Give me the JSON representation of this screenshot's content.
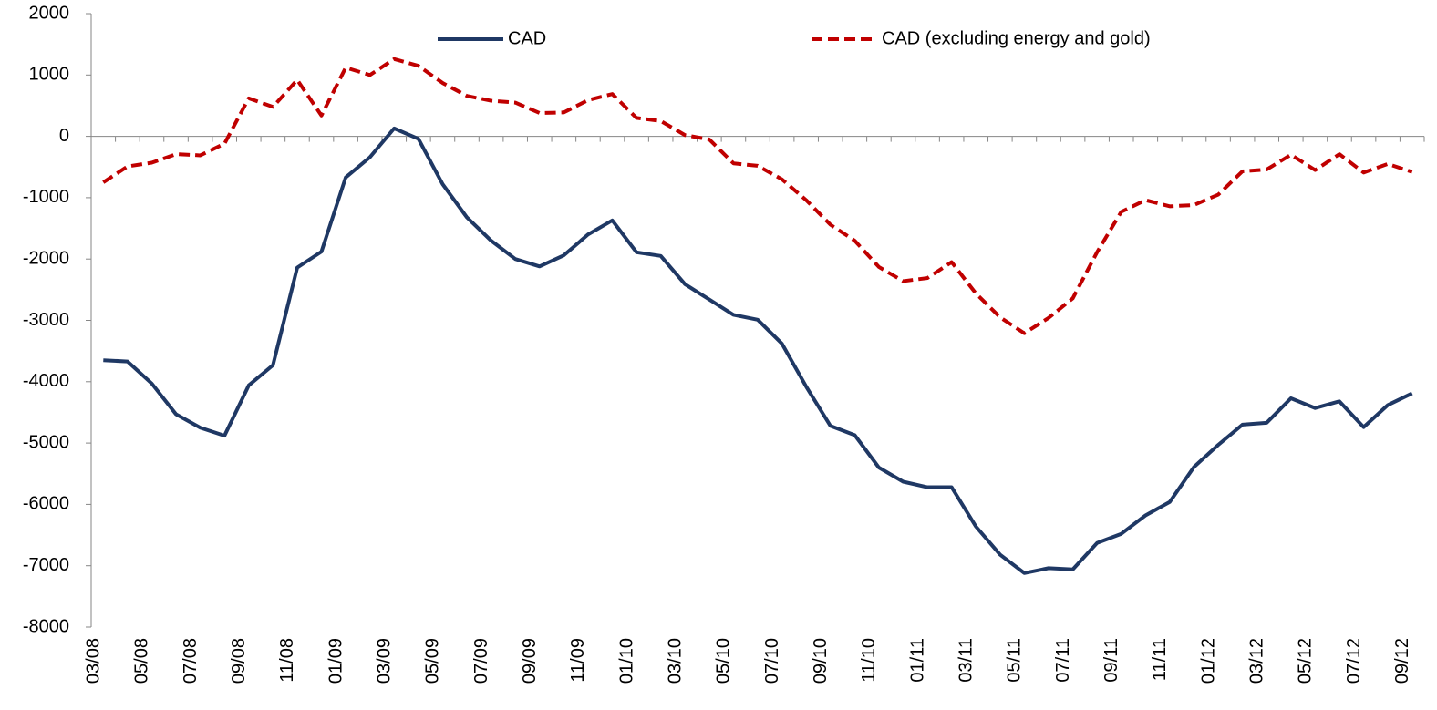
{
  "chart_data": {
    "type": "line",
    "categories": [
      "03/08",
      null,
      "05/08",
      null,
      "07/08",
      null,
      "09/08",
      null,
      "11/08",
      null,
      "01/09",
      null,
      "03/09",
      null,
      "05/09",
      null,
      "07/09",
      null,
      "09/09",
      null,
      "11/09",
      null,
      "01/10",
      null,
      "03/10",
      null,
      "05/10",
      null,
      "07/10",
      null,
      "09/10",
      null,
      "11/10",
      null,
      "01/11",
      null,
      "03/11",
      null,
      "05/11",
      null,
      "07/11",
      null,
      "09/11",
      null,
      "11/11",
      null,
      "01/12",
      null,
      "03/12",
      null,
      "05/12",
      null,
      "07/12",
      null,
      "09/12"
    ],
    "series": [
      {
        "name": "CAD",
        "color": "#1f3864",
        "dash": false,
        "values": [
          -3650,
          -3670,
          -4030,
          -4530,
          -4750,
          -4880,
          -4060,
          -3730,
          -2140,
          -1880,
          -670,
          -340,
          130,
          -40,
          -780,
          -1320,
          -1700,
          -2000,
          -2120,
          -1940,
          -1600,
          -1370,
          -1890,
          -1950,
          -2410,
          -2660,
          -2910,
          -2990,
          -3380,
          -4080,
          -4720,
          -4870,
          -5400,
          -5630,
          -5720,
          -5720,
          -6360,
          -6820,
          -7120,
          -7040,
          -7060,
          -6630,
          -6480,
          -6180,
          -5960,
          -5390,
          -5030,
          -4700,
          -4670,
          -4270,
          -4430,
          -4320,
          -4740,
          -4380,
          -4190
        ]
      },
      {
        "name": "CAD (excluding energy and gold)",
        "color": "#c00000",
        "dash": true,
        "values": [
          -750,
          -490,
          -430,
          -290,
          -310,
          -120,
          620,
          480,
          920,
          340,
          1120,
          1000,
          1260,
          1150,
          870,
          660,
          580,
          550,
          380,
          390,
          590,
          690,
          300,
          250,
          20,
          -50,
          -440,
          -480,
          -700,
          -1040,
          -1440,
          -1700,
          -2130,
          -2360,
          -2310,
          -2050,
          -2560,
          -2950,
          -3210,
          -2960,
          -2640,
          -1890,
          -1230,
          -1040,
          -1140,
          -1120,
          -950,
          -570,
          -540,
          -300,
          -550,
          -290,
          -590,
          -450,
          -580
        ]
      }
    ],
    "ylim": [
      -8000,
      2000
    ],
    "yticks": [
      2000,
      1000,
      0,
      -1000,
      -2000,
      -3000,
      -4000,
      -5000,
      -6000,
      -7000,
      -8000
    ],
    "grid": false,
    "legend": "top"
  }
}
